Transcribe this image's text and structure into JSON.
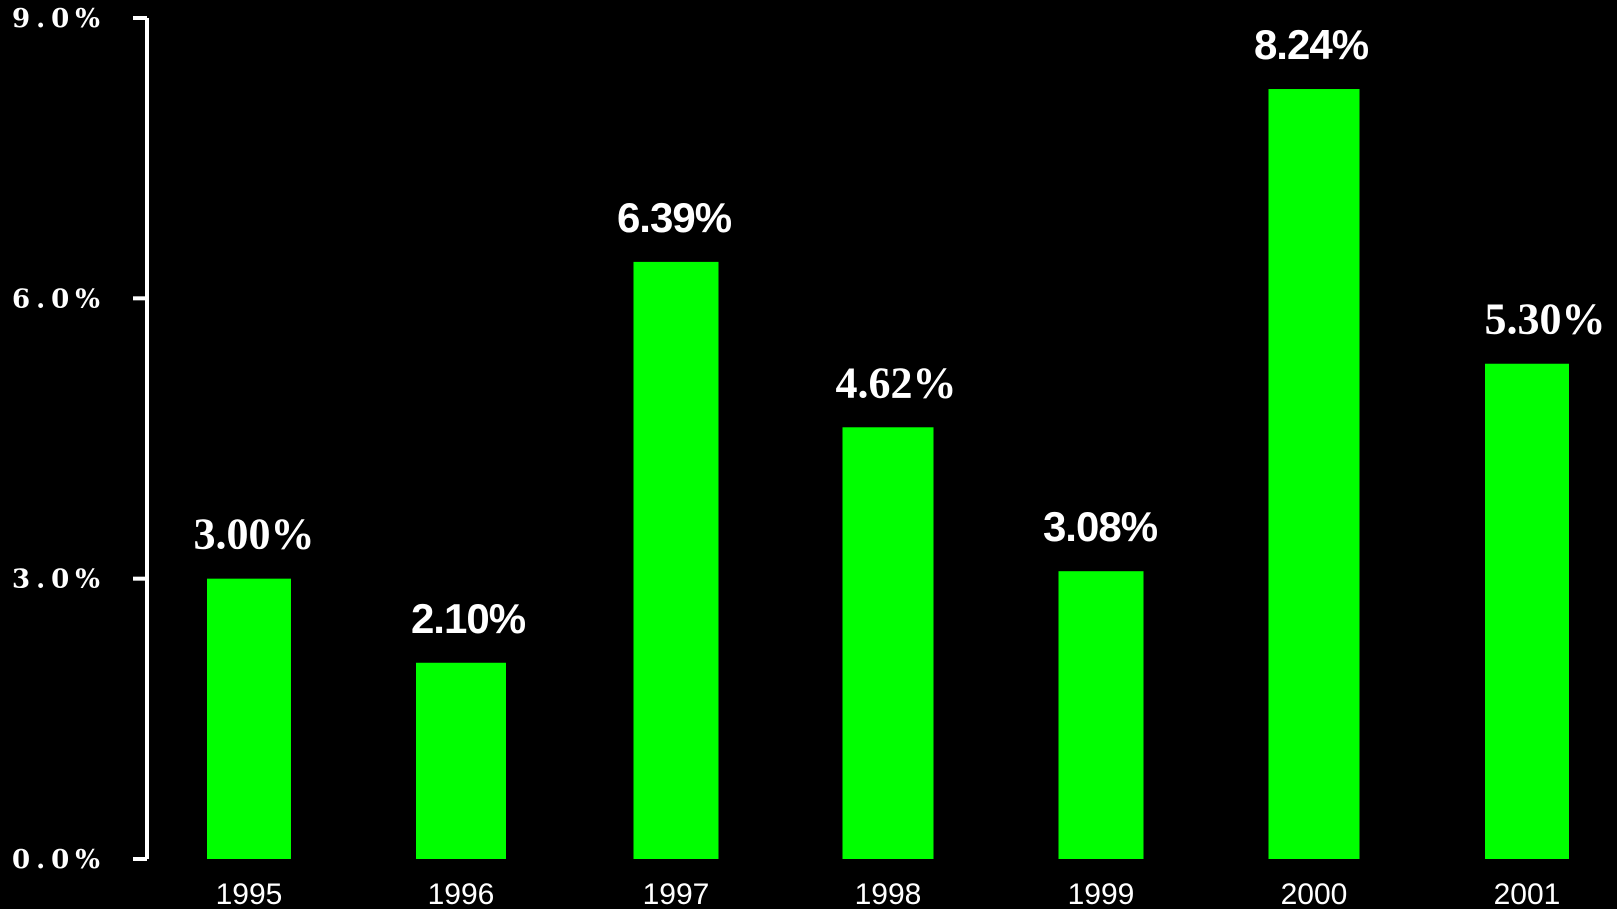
{
  "chart_data": {
    "type": "bar",
    "categories": [
      "1995",
      "1996",
      "1997",
      "1998",
      "1999",
      "2000",
      "2001"
    ],
    "values": [
      3.0,
      2.1,
      6.39,
      4.62,
      3.08,
      8.24,
      5.3
    ],
    "data_labels": [
      "3.00%",
      "2.10%",
      "6.39%",
      "4.62%",
      "3.08%",
      "8.24%",
      "5.30%"
    ],
    "y_tick_labels": [
      "0.0%",
      "3.0%",
      "6.0%",
      "9.0%"
    ],
    "y_ticks": [
      0,
      3,
      6,
      9
    ],
    "ylim": [
      0,
      9
    ],
    "title": "",
    "xlabel": "",
    "ylabel": "",
    "grid": false,
    "legend": "none",
    "colors": {
      "background": "#000000",
      "bar": "#00ff00",
      "axis": "#ffffff",
      "text": "#ffffff"
    }
  }
}
